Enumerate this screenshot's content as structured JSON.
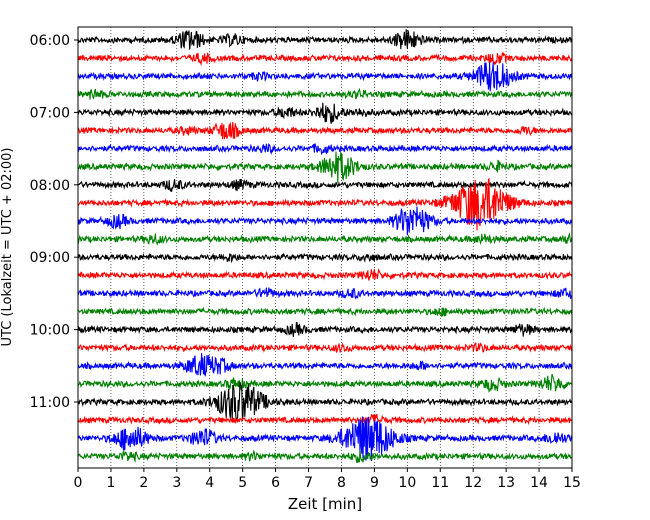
{
  "chart_data": {
    "type": "line",
    "subtype": "helicorder",
    "title": "",
    "xlabel": "Zeit  [min]",
    "ylabel": "UTC (Lokalzeit = UTC + 02:00)",
    "xlim": [
      0,
      15
    ],
    "x_ticks": [
      0,
      1,
      2,
      3,
      4,
      5,
      6,
      7,
      8,
      9,
      10,
      11,
      12,
      13,
      14,
      15
    ],
    "y_ticks": [
      "06:00",
      "07:00",
      "08:00",
      "09:00",
      "10:00",
      "11:00"
    ],
    "grid": "vertical-dotted",
    "trace_interval_minutes": 15,
    "start_time": "06:00",
    "color_cycle": [
      "#000000",
      "#ff0000",
      "#0000ff",
      "#008000"
    ],
    "series": [
      {
        "time": "06:00",
        "color": "#000000",
        "events": [
          {
            "t": 3.4,
            "amp": 1.0
          },
          {
            "t": 4.7,
            "amp": 0.5
          },
          {
            "t": 10.0,
            "amp": 1.0
          }
        ]
      },
      {
        "time": "06:15",
        "color": "#ff0000",
        "events": [
          {
            "t": 3.8,
            "amp": 0.4
          },
          {
            "t": 12.7,
            "amp": 0.5
          }
        ]
      },
      {
        "time": "06:30",
        "color": "#0000ff",
        "events": [
          {
            "t": 5.5,
            "amp": 0.3
          },
          {
            "t": 12.6,
            "amp": 1.6
          }
        ]
      },
      {
        "time": "06:45",
        "color": "#008000",
        "events": [
          {
            "t": 0.5,
            "amp": 0.4
          },
          {
            "t": 8.5,
            "amp": 0.3
          }
        ]
      },
      {
        "time": "07:00",
        "color": "#000000",
        "events": [
          {
            "t": 6.3,
            "amp": 0.5
          },
          {
            "t": 7.6,
            "amp": 1.0
          },
          {
            "t": 8.6,
            "amp": 0.3
          }
        ]
      },
      {
        "time": "07:15",
        "color": "#ff0000",
        "events": [
          {
            "t": 3.3,
            "amp": 0.3
          },
          {
            "t": 4.5,
            "amp": 0.9
          },
          {
            "t": 13.6,
            "amp": 0.3
          }
        ]
      },
      {
        "time": "07:30",
        "color": "#0000ff",
        "events": [
          {
            "t": 5.7,
            "amp": 0.3
          },
          {
            "t": 7.4,
            "amp": 0.4
          }
        ]
      },
      {
        "time": "07:45",
        "color": "#008000",
        "events": [
          {
            "t": 7.9,
            "amp": 1.5
          },
          {
            "t": 12.7,
            "amp": 0.4
          }
        ]
      },
      {
        "time": "08:00",
        "color": "#000000",
        "events": [
          {
            "t": 2.9,
            "amp": 0.5
          },
          {
            "t": 4.9,
            "amp": 0.4
          }
        ]
      },
      {
        "time": "08:15",
        "color": "#ff0000",
        "events": [
          {
            "t": 12.2,
            "amp": 2.8
          }
        ]
      },
      {
        "time": "08:30",
        "color": "#0000ff",
        "events": [
          {
            "t": 1.2,
            "amp": 0.6
          },
          {
            "t": 9.9,
            "amp": 0.8
          },
          {
            "t": 10.3,
            "amp": 1.2
          }
        ]
      },
      {
        "time": "08:45",
        "color": "#008000",
        "events": [
          {
            "t": 2.3,
            "amp": 0.4
          },
          {
            "t": 12.3,
            "amp": 0.4
          },
          {
            "t": 14.9,
            "amp": 0.3
          }
        ]
      },
      {
        "time": "09:00",
        "color": "#000000",
        "events": [
          {
            "t": 4.6,
            "amp": 0.3
          },
          {
            "t": 8.8,
            "amp": 0.3
          }
        ]
      },
      {
        "time": "09:15",
        "color": "#ff0000",
        "events": [
          {
            "t": 8.9,
            "amp": 0.5
          }
        ]
      },
      {
        "time": "09:30",
        "color": "#0000ff",
        "events": [
          {
            "t": 5.7,
            "amp": 0.4
          },
          {
            "t": 8.3,
            "amp": 0.4
          },
          {
            "t": 14.8,
            "amp": 0.4
          }
        ]
      },
      {
        "time": "09:45",
        "color": "#008000",
        "events": [
          {
            "t": 11.0,
            "amp": 0.3
          }
        ]
      },
      {
        "time": "10:00",
        "color": "#000000",
        "events": [
          {
            "t": 6.6,
            "amp": 0.5
          },
          {
            "t": 13.5,
            "amp": 0.5
          }
        ]
      },
      {
        "time": "10:15",
        "color": "#ff0000",
        "events": [
          {
            "t": 8.0,
            "amp": 0.3
          },
          {
            "t": 12.2,
            "amp": 0.3
          }
        ]
      },
      {
        "time": "10:30",
        "color": "#0000ff",
        "events": [
          {
            "t": 3.7,
            "amp": 1.1
          },
          {
            "t": 4.3,
            "amp": 0.6
          },
          {
            "t": 10.4,
            "amp": 0.3
          }
        ]
      },
      {
        "time": "10:45",
        "color": "#008000",
        "events": [
          {
            "t": 4.8,
            "amp": 0.5
          },
          {
            "t": 12.6,
            "amp": 0.6
          },
          {
            "t": 14.4,
            "amp": 0.8
          }
        ]
      },
      {
        "time": "11:00",
        "color": "#000000",
        "events": [
          {
            "t": 4.9,
            "amp": 2.2
          }
        ]
      },
      {
        "time": "11:15",
        "color": "#ff0000",
        "events": [
          {
            "t": 9.0,
            "amp": 0.4
          }
        ]
      },
      {
        "time": "11:30",
        "color": "#0000ff",
        "events": [
          {
            "t": 1.6,
            "amp": 1.3
          },
          {
            "t": 3.8,
            "amp": 0.9
          },
          {
            "t": 8.8,
            "amp": 2.5
          },
          {
            "t": 14.5,
            "amp": 0.6
          }
        ]
      },
      {
        "time": "11:45",
        "color": "#008000",
        "events": [
          {
            "t": 1.5,
            "amp": 0.4
          },
          {
            "t": 5.3,
            "amp": 0.3
          },
          {
            "t": 8.6,
            "amp": 0.5
          }
        ]
      }
    ]
  }
}
